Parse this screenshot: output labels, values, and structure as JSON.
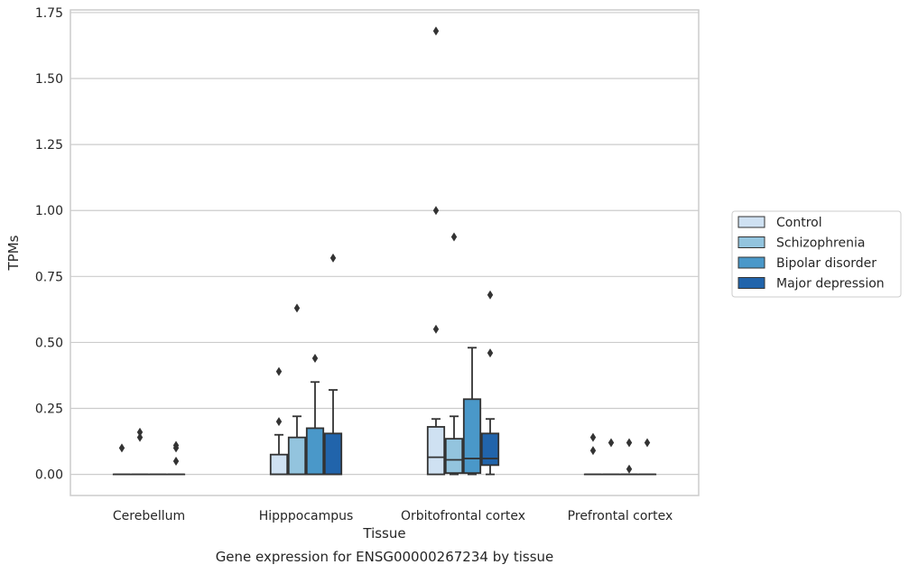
{
  "caption": "Gene expression for ENSG00000267234 by tissue",
  "colors": {
    "Control": "#cfe1f2",
    "Schizophrenia": "#93c4de",
    "Bipolar disorder": "#4a98c9",
    "Major depression": "#2164ab",
    "edge": "#333333",
    "grid": "#cccccc",
    "frame": "#cccccc"
  },
  "chart_data": {
    "type": "box",
    "xlabel": "Tissue",
    "ylabel": "TPMs",
    "ylim": [
      -0.08,
      1.76
    ],
    "yticks": [
      "0.00",
      "0.25",
      "0.50",
      "0.75",
      "1.00",
      "1.25",
      "1.50",
      "1.75"
    ],
    "grid": "horizontal",
    "legend_position": "right",
    "categories": [
      "Cerebellum",
      "Hipppocampus",
      "Orbitofrontal cortex",
      "Prefrontal cortex"
    ],
    "series": [
      {
        "name": "Control",
        "boxes": [
          {
            "q1": 0,
            "median": 0,
            "q3": 0,
            "whisker_low": 0,
            "whisker_high": 0,
            "outliers": [
              0.1
            ]
          },
          {
            "q1": 0,
            "median": 0,
            "q3": 0.075,
            "whisker_low": 0,
            "whisker_high": 0.15,
            "outliers": [
              0.2,
              0.39
            ]
          },
          {
            "q1": 0,
            "median": 0.065,
            "q3": 0.18,
            "whisker_low": 0,
            "whisker_high": 0.21,
            "outliers": [
              0.55,
              1.0,
              1.68
            ]
          },
          {
            "q1": 0,
            "median": 0,
            "q3": 0,
            "whisker_low": 0,
            "whisker_high": 0,
            "outliers": [
              0.09,
              0.14
            ]
          }
        ]
      },
      {
        "name": "Schizophrenia",
        "boxes": [
          {
            "q1": 0,
            "median": 0,
            "q3": 0,
            "whisker_low": 0,
            "whisker_high": 0,
            "outliers": [
              0.14,
              0.16
            ]
          },
          {
            "q1": 0,
            "median": 0,
            "q3": 0.14,
            "whisker_low": 0,
            "whisker_high": 0.22,
            "outliers": [
              0.63
            ]
          },
          {
            "q1": 0.005,
            "median": 0.055,
            "q3": 0.135,
            "whisker_low": 0,
            "whisker_high": 0.22,
            "outliers": [
              0.9
            ]
          },
          {
            "q1": 0,
            "median": 0,
            "q3": 0,
            "whisker_low": 0,
            "whisker_high": 0,
            "outliers": [
              0.12
            ]
          }
        ]
      },
      {
        "name": "Bipolar disorder",
        "boxes": [
          {
            "q1": 0,
            "median": 0,
            "q3": 0,
            "whisker_low": 0,
            "whisker_high": 0,
            "outliers": []
          },
          {
            "q1": 0,
            "median": 0,
            "q3": 0.175,
            "whisker_low": 0,
            "whisker_high": 0.35,
            "outliers": [
              0.44
            ]
          },
          {
            "q1": 0.005,
            "median": 0.06,
            "q3": 0.285,
            "whisker_low": 0,
            "whisker_high": 0.48,
            "outliers": []
          },
          {
            "q1": 0,
            "median": 0,
            "q3": 0,
            "whisker_low": 0,
            "whisker_high": 0,
            "outliers": [
              0.02,
              0.12
            ]
          }
        ]
      },
      {
        "name": "Major depression",
        "boxes": [
          {
            "q1": 0,
            "median": 0,
            "q3": 0,
            "whisker_low": 0,
            "whisker_high": 0,
            "outliers": [
              0.05,
              0.1,
              0.11
            ]
          },
          {
            "q1": 0,
            "median": 0,
            "q3": 0.155,
            "whisker_low": 0,
            "whisker_high": 0.32,
            "outliers": [
              0.82
            ]
          },
          {
            "q1": 0.035,
            "median": 0.06,
            "q3": 0.155,
            "whisker_low": 0,
            "whisker_high": 0.21,
            "outliers": [
              0.46,
              0.68
            ]
          },
          {
            "q1": 0,
            "median": 0,
            "q3": 0,
            "whisker_low": 0,
            "whisker_high": 0,
            "outliers": [
              0.12
            ]
          }
        ]
      }
    ]
  }
}
